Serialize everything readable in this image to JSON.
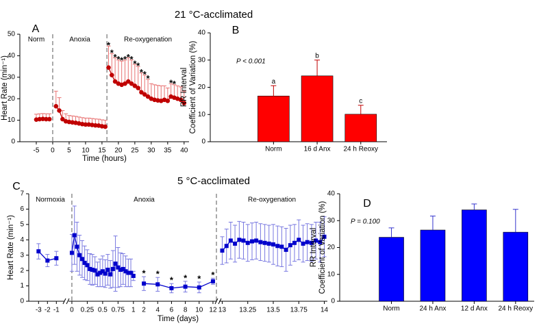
{
  "chart_data": [
    {
      "type": "line",
      "heading": "21 °C-acclimated",
      "panel": "A",
      "xlabel": "Time (hours)",
      "ylabel": "Heart Rate (min⁻¹)",
      "xlim": [
        -10,
        41.5
      ],
      "xticks": [
        -5,
        0,
        5,
        10,
        15,
        20,
        25,
        30,
        35,
        40
      ],
      "ylim": [
        0,
        50
      ],
      "yticks": [
        0,
        10,
        20,
        30,
        40,
        50
      ],
      "dividers": [
        0,
        16.5
      ],
      "phase_labels": [
        "Norm",
        "Anoxia",
        "Re-oxygenation"
      ],
      "marker": "circle",
      "error_direction": "up",
      "color": "#c00000",
      "error_color": "#e87070",
      "series": [
        {
          "x": [
            -5,
            -4,
            -3,
            -2,
            -1
          ],
          "values": [
            10.3,
            10.5,
            10.6,
            10.5,
            10.5
          ],
          "errors": [
            2.5,
            2.5,
            2.5,
            2.5,
            2.5
          ]
        },
        {
          "x": [
            1,
            2,
            3,
            4,
            5,
            6,
            7,
            8,
            9,
            10,
            11,
            12,
            13,
            14,
            15,
            16
          ],
          "values": [
            16.5,
            14.5,
            10.5,
            9.5,
            9.2,
            9,
            8.8,
            8.5,
            8.2,
            8,
            8,
            7.8,
            7.6,
            7.5,
            7.2,
            7
          ],
          "errors": [
            7,
            6,
            4,
            3.5,
            3,
            3,
            3,
            3,
            3,
            3,
            3,
            3,
            3,
            3,
            3,
            3
          ]
        },
        {
          "x": [
            17,
            18,
            19,
            20,
            21,
            22,
            23,
            24,
            25,
            26,
            27,
            28,
            29,
            30,
            31,
            32,
            33,
            34,
            35,
            36,
            37,
            38,
            39,
            40
          ],
          "values": [
            34.5,
            31,
            28,
            27,
            26.5,
            27,
            28,
            27,
            26,
            25,
            23,
            22,
            21,
            20,
            19.5,
            19.2,
            19,
            19.5,
            19,
            21,
            20.5,
            20,
            19.5,
            18
          ],
          "errors": [
            10,
            10,
            11,
            11,
            11,
            11,
            11,
            11,
            10,
            10,
            9,
            9,
            8,
            7,
            7,
            7,
            7,
            6.5,
            6,
            6,
            6,
            6,
            6,
            5.5
          ],
          "sig_labels": [
            "*",
            "*",
            "*",
            "*",
            "*",
            "*",
            "*",
            "*",
            "*",
            "*",
            "*",
            "*",
            "*",
            null,
            null,
            null,
            null,
            null,
            null,
            "*",
            "*",
            null,
            null,
            null
          ]
        }
      ]
    },
    {
      "type": "bar",
      "panel": "B",
      "ylabel": [
        "RR Interval",
        "Coefficient of Variation (%)"
      ],
      "annotation": "P < 0.001",
      "categories": [
        "Norm",
        "16 d Anx",
        "24 h Reoxy"
      ],
      "values": [
        16.8,
        24.2,
        10.1
      ],
      "errors": [
        3.8,
        5.8,
        3.3
      ],
      "sig_labels": [
        "a",
        "b",
        "c"
      ],
      "color": "#ff0000",
      "error_color": "#c00000",
      "ylim": [
        0,
        40
      ],
      "yticks": [
        0,
        10,
        20,
        30,
        40
      ]
    },
    {
      "type": "line",
      "heading": "5 °C-acclimated",
      "panel": "C",
      "xlabel": "Time (days)",
      "ylabel": "Heart Rate (min⁻¹)",
      "x_segments": [
        {
          "xlim": [
            -4.1,
            -0.1
          ],
          "xticks": [
            -3,
            -2,
            -1
          ]
        },
        {
          "xlim": [
            -0.055,
            1.08
          ],
          "xticks": [
            0,
            0.25,
            0.5,
            0.75,
            1
          ]
        },
        {
          "xlim": [
            1.2,
            12.5
          ],
          "xticks": [
            2,
            4,
            6,
            8,
            10,
            12
          ]
        },
        {
          "xlim": [
            12.97,
            14.03
          ],
          "xticks": [
            13,
            13.25,
            13.5,
            13.75,
            14
          ]
        }
      ],
      "ylim": [
        0,
        7
      ],
      "yticks": [
        0,
        1,
        2,
        3,
        4,
        5,
        6,
        7
      ],
      "dividers": [
        0,
        12.5
      ],
      "phase_labels": [
        "Normoxia",
        "Anoxia",
        "Re-oxygenation"
      ],
      "marker": "square",
      "error_direction": "both",
      "color": "#0000cc",
      "error_color": "#7777e0",
      "series": [
        {
          "x": [
            -3,
            -2,
            -1
          ],
          "values": [
            3.25,
            2.65,
            2.8
          ],
          "errors": [
            0.5,
            0.4,
            0.45
          ]
        },
        {
          "x": [
            0,
            0.042,
            0.083,
            0.125,
            0.167,
            0.208,
            0.25,
            0.292,
            0.333,
            0.375,
            0.417,
            0.458,
            0.5,
            0.542,
            0.583,
            0.625,
            0.667,
            0.708,
            0.75,
            0.792,
            0.833,
            0.875,
            0.917,
            0.958,
            1
          ],
          "values": [
            3.15,
            4.3,
            3.55,
            3.0,
            2.75,
            2.5,
            2.35,
            2.1,
            2.05,
            2.0,
            1.75,
            1.85,
            1.95,
            1.8,
            2.05,
            1.75,
            2.1,
            2.45,
            2.2,
            2.05,
            2.1,
            1.95,
            1.85,
            1.85,
            1.65
          ],
          "errors": [
            1.2,
            1.9,
            1.6,
            1.3,
            1.2,
            1.1,
            1.0,
            1.0,
            1.0,
            0.9,
            0.8,
            0.9,
            1.0,
            0.9,
            1.0,
            0.9,
            1.2,
            1.8,
            1.3,
            1.1,
            1.0,
            1.0,
            0.9,
            0.9,
            0.3
          ]
        },
        {
          "x": [
            2,
            4,
            6,
            8,
            10,
            12
          ],
          "values": [
            1.15,
            1.1,
            0.85,
            0.95,
            0.9,
            1.3
          ],
          "errors": [
            0.45,
            0.45,
            0.3,
            0.35,
            0.35,
            0.2
          ],
          "sig_labels": [
            "*",
            "*",
            "*",
            "*",
            "*",
            "*"
          ]
        },
        {
          "x": [
            13,
            13.042,
            13.083,
            13.125,
            13.167,
            13.208,
            13.25,
            13.292,
            13.333,
            13.375,
            13.417,
            13.458,
            13.5,
            13.542,
            13.583,
            13.625,
            13.667,
            13.708,
            13.75,
            13.792,
            13.833,
            13.875,
            13.917,
            13.958,
            14
          ],
          "values": [
            3.3,
            3.6,
            3.95,
            3.75,
            4.0,
            3.95,
            3.8,
            3.9,
            3.95,
            3.85,
            3.8,
            3.75,
            3.7,
            3.6,
            3.55,
            3.35,
            3.65,
            3.8,
            4.0,
            3.75,
            3.85,
            3.8,
            3.95,
            3.85,
            4.2
          ],
          "errors": [
            0.9,
            1.1,
            1.2,
            1.2,
            1.2,
            1.2,
            1.2,
            1.2,
            1.2,
            1.2,
            1.2,
            1.2,
            1.3,
            1.3,
            1.3,
            1.4,
            1.3,
            1.2,
            1.3,
            1.2,
            1.2,
            1.2,
            1.2,
            1.3,
            1.3
          ]
        }
      ]
    },
    {
      "type": "bar",
      "panel": "D",
      "ylabel": [
        "RR Interval",
        "Coefficient of Variation (%)"
      ],
      "annotation": "P = 0.100",
      "categories": [
        "Norm",
        "24 h Anx",
        "12 d Anx",
        "24 h Reoxy"
      ],
      "values": [
        23.8,
        26.5,
        34,
        25.7
      ],
      "errors": [
        3.5,
        5.2,
        2.2,
        8.5
      ],
      "color": "#0000ff",
      "error_color": "#3333cc",
      "ylim": [
        0,
        40
      ],
      "yticks": [
        0,
        10,
        20,
        30,
        40
      ]
    }
  ]
}
